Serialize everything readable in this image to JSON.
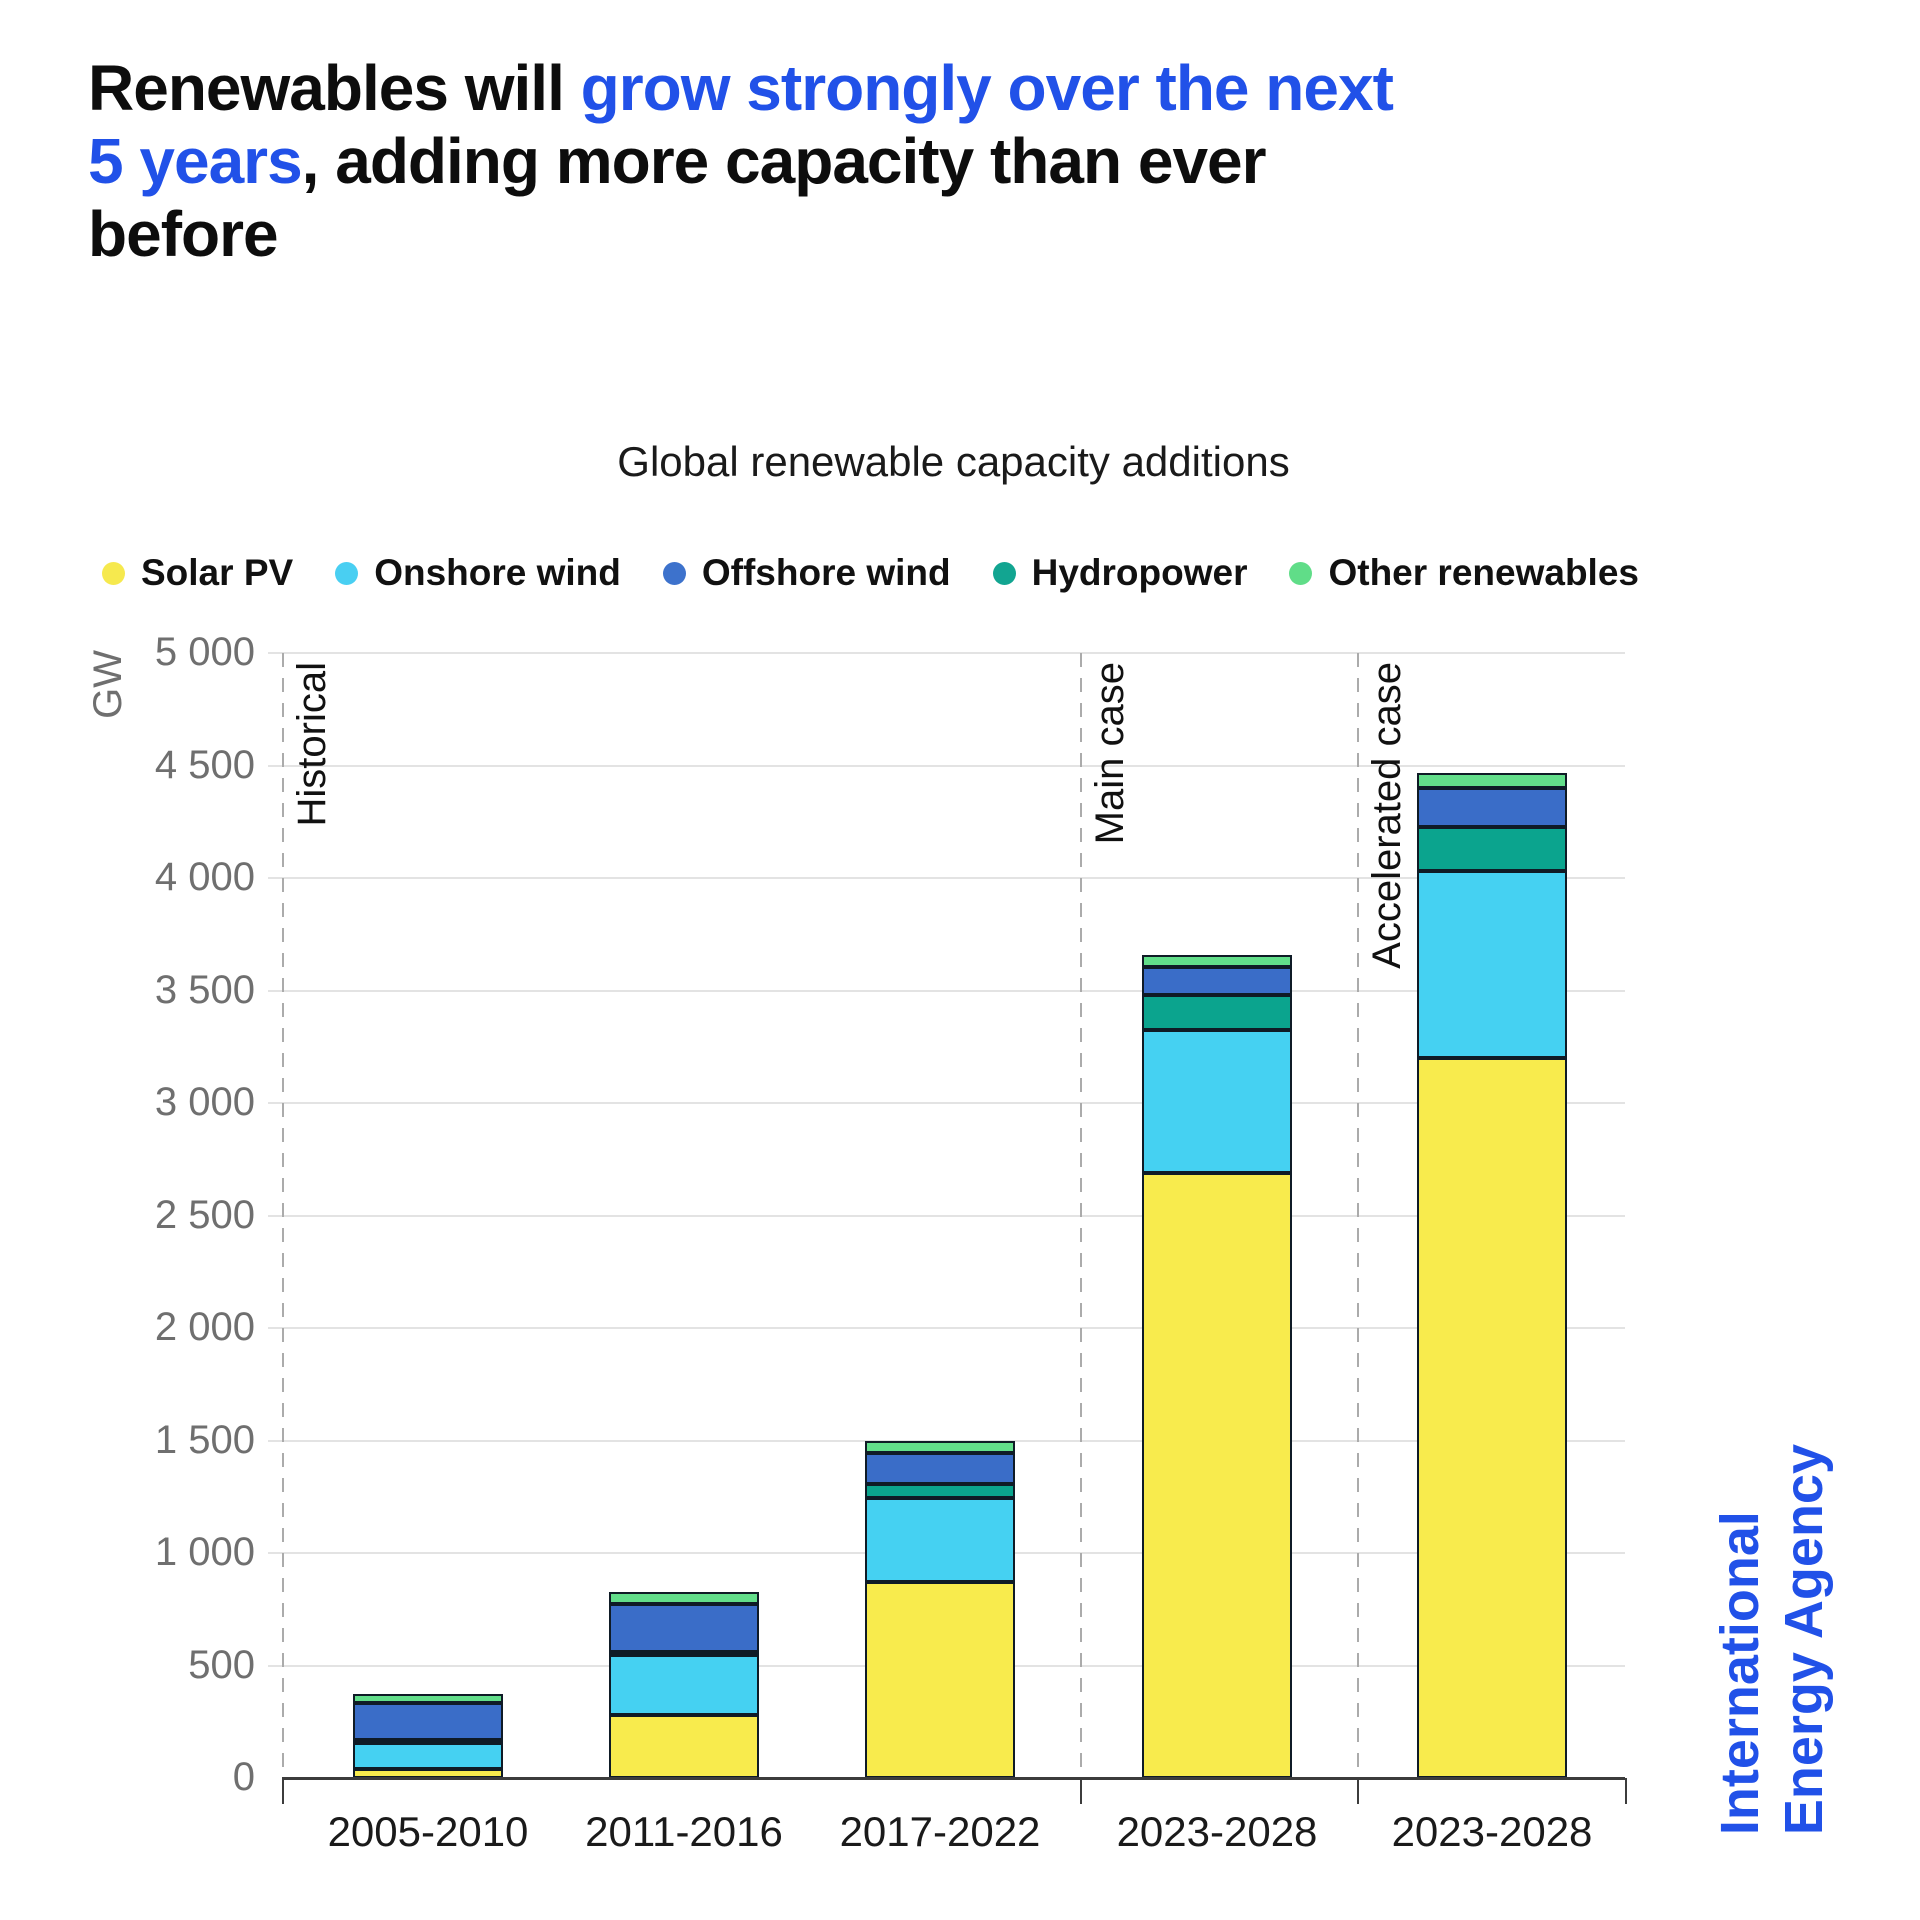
{
  "title": {
    "part1": "Renewables will ",
    "highlight": "grow strongly over the next 5 years",
    "part2": ", adding more capacity than ever before",
    "highlight_color": "#2151e8"
  },
  "chart_data": {
    "type": "bar",
    "stacked": true,
    "title": "Global renewable capacity additions",
    "unit_label": "GW",
    "grid": "horizontal",
    "legend_position": "top",
    "categories": [
      "2005-2010",
      "2011-2016",
      "2017-2022",
      "2023-2028",
      "2023-2028"
    ],
    "sections": [
      {
        "label": "Historical",
        "category_indexes": [
          0,
          1,
          2
        ]
      },
      {
        "label": "Main case",
        "category_indexes": [
          3
        ]
      },
      {
        "label": "Accelerated case",
        "category_indexes": [
          4
        ]
      }
    ],
    "legend": [
      {
        "label": "Solar PV",
        "color": "#f6e94e"
      },
      {
        "label": "Onshore wind",
        "color": "#49cff2"
      },
      {
        "label": "Offshore wind",
        "color": "#3d72cc"
      },
      {
        "label": "Hydropower",
        "color": "#12a591"
      },
      {
        "label": "Other renewables",
        "color": "#60dd88"
      }
    ],
    "series_stack_order": "bottom_to_top",
    "series": [
      {
        "name": "Solar PV",
        "color": "#f8eb4d",
        "values": [
          40,
          280,
          870,
          2690,
          3200
        ]
      },
      {
        "name": "Onshore wind",
        "color": "#45d1f2",
        "values": [
          115,
          265,
          375,
          635,
          830
        ]
      },
      {
        "name": "Hydropower",
        "color": "#0ba48e",
        "values": [
          15,
          15,
          60,
          155,
          195
        ]
      },
      {
        "name": "Offshore wind",
        "color": "#3a6dc8",
        "values": [
          165,
          215,
          140,
          125,
          175
        ]
      },
      {
        "name": "Other renewables",
        "color": "#62de8a",
        "values": [
          40,
          50,
          55,
          55,
          65
        ]
      }
    ],
    "totals": [
      375,
      825,
      1500,
      3660,
      4465
    ],
    "y_axis": {
      "min": 0,
      "max": 5000,
      "step": 500,
      "tick_labels": [
        "0",
        "500",
        "1 000",
        "1 500",
        "2 000",
        "2 500",
        "3 000",
        "3 500",
        "4 000",
        "4 500",
        "5 000"
      ]
    }
  },
  "footer": {
    "logo_line1": "International",
    "logo_line2": "Energy Agency",
    "logo_color": "#2151e8"
  }
}
